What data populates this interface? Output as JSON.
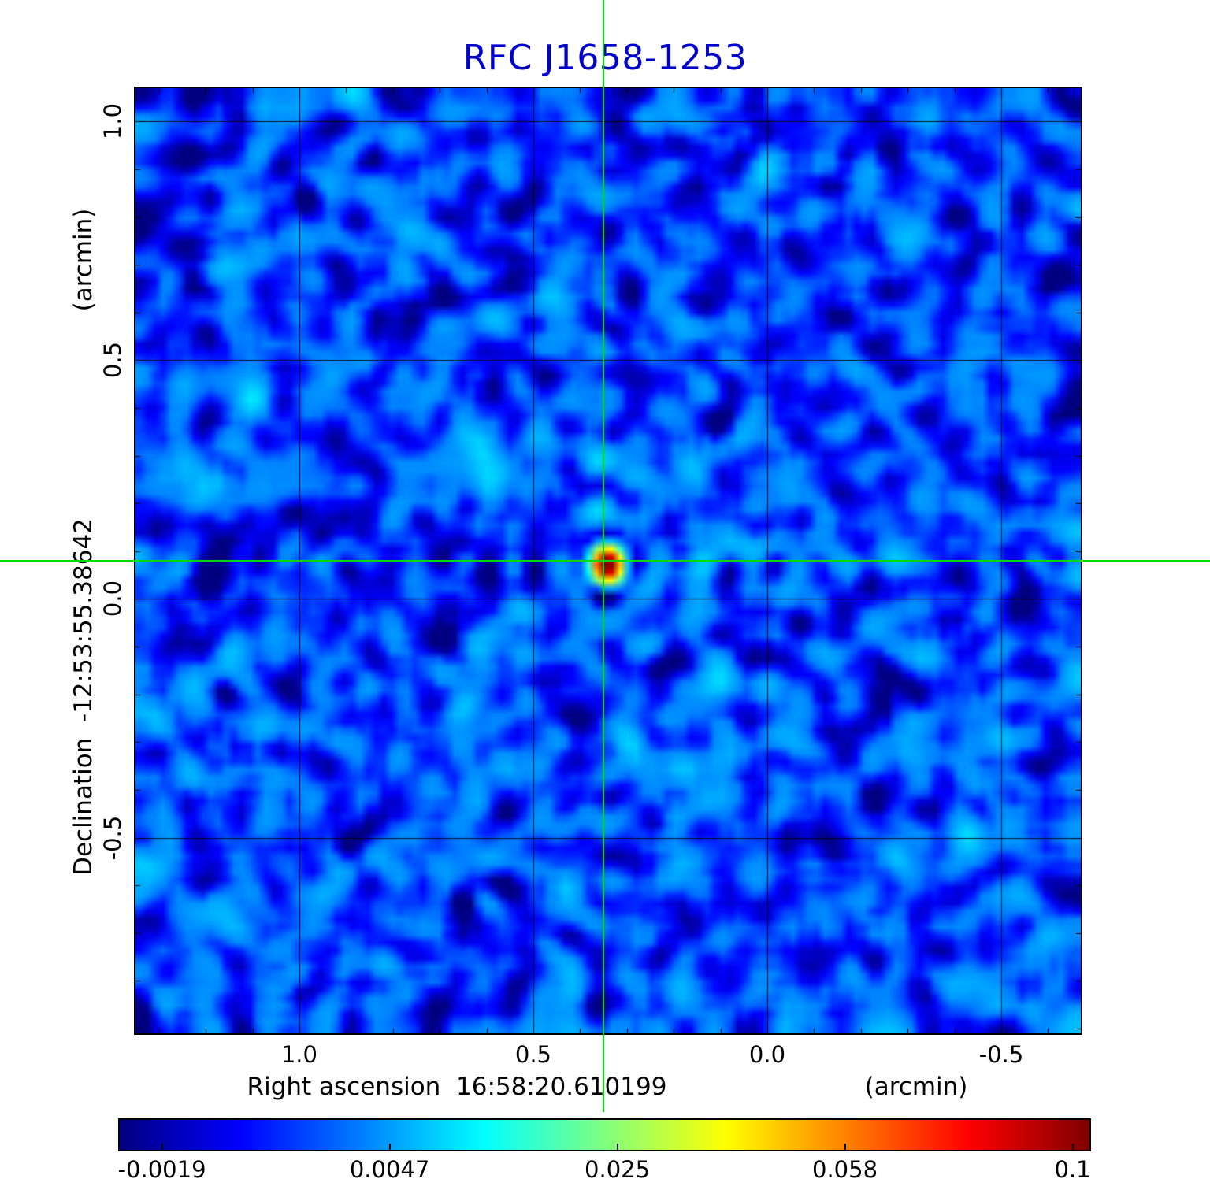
{
  "figure": {
    "title": "RFC J1658-1253",
    "title_color": "#0000cd"
  },
  "chart_data": {
    "type": "heatmap",
    "title": "RFC J1658-1253",
    "colormap": "jet",
    "x_axis": {
      "label": "Right ascension  16:58:20.610199",
      "title": "Right ascension",
      "center_value": "16:58:20.610199",
      "unit": "(arcmin)",
      "tick_labels": [
        "1.0",
        "0.5",
        "0.0",
        "-0.5"
      ],
      "tick_values": [
        1.0,
        0.5,
        0.0,
        -0.5
      ],
      "minor_tick_step": 0.1,
      "range": [
        1.35,
        -0.67
      ]
    },
    "y_axis": {
      "label": "Declination  -12:53:55.38642",
      "title": "Declination",
      "center_value": "-12:53:55.38642",
      "unit": "(arcmin)",
      "tick_labels": [
        "1.0",
        "0.5",
        "0.0",
        "-0.5"
      ],
      "tick_values": [
        1.0,
        0.5,
        0.0,
        -0.5
      ],
      "minor_tick_step": 0.1,
      "range": [
        1.07,
        -0.91
      ]
    },
    "source": {
      "x_arcmin": 0.35,
      "y_arcmin": 0.08,
      "peak": 0.1,
      "sigma_x_cells": 1.2,
      "sigma_y_cells": 1.5
    },
    "crosshair": {
      "x_arcmin": 0.35,
      "y_arcmin": 0.08,
      "color": "#00dd00"
    },
    "background": {
      "mean": 0.0032,
      "noise_sigma": 0.0016
    },
    "colorbar": {
      "tick_labels": [
        "-0.0019",
        "0.0047",
        "0.025",
        "0.058",
        "0.1"
      ],
      "tick_values": [
        -0.0019,
        0.0047,
        0.025,
        0.058,
        0.1
      ],
      "colormap_stops": [
        [
          0.0,
          "#000080"
        ],
        [
          0.125,
          "#0000ff"
        ],
        [
          0.375,
          "#00ffff"
        ],
        [
          0.625,
          "#ffff00"
        ],
        [
          0.875,
          "#ff0000"
        ],
        [
          1.0,
          "#800000"
        ]
      ]
    }
  }
}
